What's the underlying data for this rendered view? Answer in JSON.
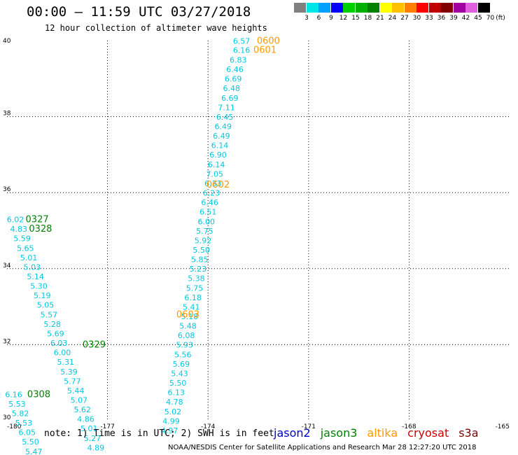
{
  "header": {
    "title": "00:00 – 11:59 UTC 03/27/2018",
    "subtitle": "12 hour collection of altimeter wave heights"
  },
  "color_scale": {
    "unit": "(ft)",
    "bins": [
      {
        "label": "3",
        "color": "#808080"
      },
      {
        "label": "6",
        "color": "#00e5e5"
      },
      {
        "label": "9",
        "color": "#00a0ff"
      },
      {
        "label": "12",
        "color": "#0000ff"
      },
      {
        "label": "15",
        "color": "#00d000"
      },
      {
        "label": "18",
        "color": "#00b000"
      },
      {
        "label": "21",
        "color": "#008000"
      },
      {
        "label": "24",
        "color": "#ffff00"
      },
      {
        "label": "27",
        "color": "#ffc000"
      },
      {
        "label": "30",
        "color": "#ff8000"
      },
      {
        "label": "33",
        "color": "#ff0000"
      },
      {
        "label": "36",
        "color": "#c00000"
      },
      {
        "label": "39",
        "color": "#800000"
      },
      {
        "label": "42",
        "color": "#a000a0"
      },
      {
        "label": "45",
        "color": "#e060e0"
      },
      {
        "label": "70",
        "color": "#000000"
      }
    ]
  },
  "footer": {
    "note": "note: 1) Time is in UTC; 2) SWH is in feet",
    "credit": "NOAA/NESDIS Center for Satellite Applications and Research   Mar 28 12:27:20 UTC 2018",
    "satellites": [
      {
        "name": "jason2",
        "color": "#0000cc"
      },
      {
        "name": "jason3",
        "color": "#008000"
      },
      {
        "name": "altika",
        "color": "#ff9900"
      },
      {
        "name": "cryosat",
        "color": "#cc0000"
      },
      {
        "name": "s3a",
        "color": "#800000"
      }
    ]
  },
  "chart_data": {
    "type": "scatter",
    "title": "00:00 – 11:59 UTC 03/27/2018",
    "subtitle": "12 hour collection of altimeter wave heights",
    "xlim": [
      -180,
      -165
    ],
    "ylim": [
      30,
      40
    ],
    "x_ticks": [
      "-180",
      "-177",
      "-174",
      "-171",
      "-168",
      "-165"
    ],
    "y_ticks": [
      "30",
      "32",
      "34",
      "36",
      "38",
      "40"
    ],
    "grid": true,
    "value_color": "#00c8e0",
    "tracks": [
      {
        "satellite": "altika",
        "time_labels": [
          {
            "text": "0600",
            "lon": -172.2,
            "lat": 39.92
          },
          {
            "text": "0601",
            "lon": -172.3,
            "lat": 39.68
          },
          {
            "text": "0602",
            "lon": -173.7,
            "lat": 36.13
          },
          {
            "text": "0603",
            "lon": -174.6,
            "lat": 32.72
          }
        ],
        "points": [
          {
            "lon": -173.0,
            "lat": 39.92,
            "value": "6.57"
          },
          {
            "lon": -173.0,
            "lat": 39.68,
            "value": "6.16"
          },
          {
            "lon": -173.1,
            "lat": 39.42,
            "value": "6.83"
          },
          {
            "lon": -173.2,
            "lat": 39.17,
            "value": "6.46"
          },
          {
            "lon": -173.25,
            "lat": 38.92,
            "value": "6.69"
          },
          {
            "lon": -173.3,
            "lat": 38.67,
            "value": "6.48"
          },
          {
            "lon": -173.35,
            "lat": 38.42,
            "value": "6.69"
          },
          {
            "lon": -173.45,
            "lat": 38.17,
            "value": "7.11"
          },
          {
            "lon": -173.5,
            "lat": 37.92,
            "value": "6.45"
          },
          {
            "lon": -173.55,
            "lat": 37.67,
            "value": "6.49"
          },
          {
            "lon": -173.6,
            "lat": 37.42,
            "value": "6.49"
          },
          {
            "lon": -173.65,
            "lat": 37.17,
            "value": "6.14"
          },
          {
            "lon": -173.7,
            "lat": 36.92,
            "value": "6.90"
          },
          {
            "lon": -173.75,
            "lat": 36.67,
            "value": "6.14"
          },
          {
            "lon": -173.8,
            "lat": 36.42,
            "value": "7.05"
          },
          {
            "lon": -173.85,
            "lat": 36.17,
            "value": "6.33"
          },
          {
            "lon": -173.9,
            "lat": 35.92,
            "value": "6.23"
          },
          {
            "lon": -173.95,
            "lat": 35.67,
            "value": "6.46"
          },
          {
            "lon": -174.0,
            "lat": 35.42,
            "value": "6.51"
          },
          {
            "lon": -174.05,
            "lat": 35.17,
            "value": "6.00"
          },
          {
            "lon": -174.1,
            "lat": 34.92,
            "value": "5.75"
          },
          {
            "lon": -174.15,
            "lat": 34.67,
            "value": "5.92"
          },
          {
            "lon": -174.2,
            "lat": 34.42,
            "value": "5.50"
          },
          {
            "lon": -174.25,
            "lat": 34.17,
            "value": "5.85"
          },
          {
            "lon": -174.3,
            "lat": 33.92,
            "value": "5.23"
          },
          {
            "lon": -174.35,
            "lat": 33.67,
            "value": "5.38"
          },
          {
            "lon": -174.4,
            "lat": 33.42,
            "value": "5.75"
          },
          {
            "lon": -174.45,
            "lat": 33.17,
            "value": "6.18"
          },
          {
            "lon": -174.5,
            "lat": 32.92,
            "value": "5.41"
          },
          {
            "lon": -174.55,
            "lat": 32.67,
            "value": "5.18"
          },
          {
            "lon": -174.6,
            "lat": 32.42,
            "value": "5.48"
          },
          {
            "lon": -174.65,
            "lat": 32.17,
            "value": "6.08"
          },
          {
            "lon": -174.7,
            "lat": 31.92,
            "value": "5.93"
          },
          {
            "lon": -174.75,
            "lat": 31.67,
            "value": "5.56"
          },
          {
            "lon": -174.8,
            "lat": 31.42,
            "value": "5.69"
          },
          {
            "lon": -174.85,
            "lat": 31.17,
            "value": "5.43"
          },
          {
            "lon": -174.9,
            "lat": 30.92,
            "value": "5.50"
          },
          {
            "lon": -174.95,
            "lat": 30.67,
            "value": "6.13"
          },
          {
            "lon": -175.0,
            "lat": 30.42,
            "value": "4.78"
          },
          {
            "lon": -175.05,
            "lat": 30.17,
            "value": "5.02"
          },
          {
            "lon": -175.1,
            "lat": 29.92,
            "value": "4.99"
          },
          {
            "lon": -175.15,
            "lat": 29.67,
            "value": "4.97"
          }
        ]
      },
      {
        "satellite": "jason3",
        "time_labels": [
          {
            "text": "0327",
            "lon": -179.1,
            "lat": 35.22
          },
          {
            "text": "0328",
            "lon": -179.0,
            "lat": 34.97
          },
          {
            "text": "0329",
            "lon": -177.4,
            "lat": 31.92
          }
        ],
        "points": [
          {
            "lon": -179.75,
            "lat": 35.22,
            "value": "6.02"
          },
          {
            "lon": -179.65,
            "lat": 34.97,
            "value": "4.83"
          },
          {
            "lon": -179.55,
            "lat": 34.72,
            "value": "5.59"
          },
          {
            "lon": -179.45,
            "lat": 34.47,
            "value": "5.65"
          },
          {
            "lon": -179.35,
            "lat": 34.22,
            "value": "5.01"
          },
          {
            "lon": -179.25,
            "lat": 33.97,
            "value": "5.03"
          },
          {
            "lon": -179.15,
            "lat": 33.72,
            "value": "5.14"
          },
          {
            "lon": -179.05,
            "lat": 33.47,
            "value": "5.30"
          },
          {
            "lon": -178.95,
            "lat": 33.22,
            "value": "5.19"
          },
          {
            "lon": -178.85,
            "lat": 32.97,
            "value": "5.05"
          },
          {
            "lon": -178.75,
            "lat": 32.72,
            "value": "5.57"
          },
          {
            "lon": -178.65,
            "lat": 32.47,
            "value": "5.28"
          },
          {
            "lon": -178.55,
            "lat": 32.22,
            "value": "5.69"
          },
          {
            "lon": -178.45,
            "lat": 31.97,
            "value": "6.03"
          },
          {
            "lon": -178.35,
            "lat": 31.72,
            "value": "6.00"
          },
          {
            "lon": -178.25,
            "lat": 31.47,
            "value": "5.31"
          },
          {
            "lon": -178.15,
            "lat": 31.22,
            "value": "5.39"
          },
          {
            "lon": -178.05,
            "lat": 30.97,
            "value": "5.77"
          },
          {
            "lon": -177.95,
            "lat": 30.72,
            "value": "5.44"
          },
          {
            "lon": -177.85,
            "lat": 30.47,
            "value": "5.07"
          },
          {
            "lon": -177.75,
            "lat": 30.22,
            "value": "5.62"
          },
          {
            "lon": -177.65,
            "lat": 29.97,
            "value": "4.86"
          },
          {
            "lon": -177.55,
            "lat": 29.72,
            "value": "5.01"
          },
          {
            "lon": -177.45,
            "lat": 29.47,
            "value": "5.27"
          },
          {
            "lon": -177.35,
            "lat": 29.22,
            "value": "4.89"
          }
        ]
      },
      {
        "satellite": "jason3",
        "time_labels": [
          {
            "text": "0308",
            "lon": -179.05,
            "lat": 30.62
          }
        ],
        "points": [
          {
            "lon": -179.8,
            "lat": 30.62,
            "value": "6.16"
          },
          {
            "lon": -179.7,
            "lat": 30.37,
            "value": "5.53"
          },
          {
            "lon": -179.6,
            "lat": 30.12,
            "value": "5.82"
          },
          {
            "lon": -179.5,
            "lat": 29.87,
            "value": "5.53"
          },
          {
            "lon": -179.4,
            "lat": 29.62,
            "value": "6.05"
          },
          {
            "lon": -179.3,
            "lat": 29.37,
            "value": "5.50"
          },
          {
            "lon": -179.2,
            "lat": 29.12,
            "value": "5.47"
          }
        ]
      }
    ]
  }
}
